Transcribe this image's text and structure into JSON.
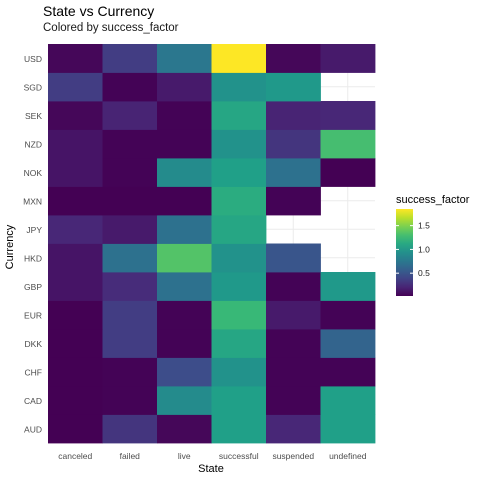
{
  "chart_data": {
    "type": "heatmap",
    "title": "State vs Currency",
    "subtitle": "Colored by success_factor",
    "xlabel": "State",
    "ylabel": "Currency",
    "x": [
      "canceled",
      "failed",
      "live",
      "successful",
      "suspended",
      "undefined"
    ],
    "y": [
      "AUD",
      "CAD",
      "CHF",
      "DKK",
      "EUR",
      "GBP",
      "HKD",
      "JPY",
      "MXN",
      "NOK",
      "NZD",
      "SEK",
      "SGD",
      "USD"
    ],
    "values": [
      [
        0.02,
        0.3,
        0.05,
        1.05,
        0.22,
        1.05
      ],
      [
        0.02,
        0.03,
        0.9,
        1.05,
        0.03,
        1.05
      ],
      [
        0.02,
        0.03,
        0.45,
        0.95,
        0.03,
        0.03
      ],
      [
        0.02,
        0.35,
        0.03,
        1.1,
        0.03,
        0.6
      ],
      [
        0.02,
        0.35,
        0.03,
        1.25,
        0.15,
        0.03
      ],
      [
        0.12,
        0.25,
        0.7,
        1.0,
        0.03,
        1.0
      ],
      [
        0.12,
        0.7,
        1.35,
        0.95,
        0.5,
        null
      ],
      [
        0.22,
        0.15,
        0.7,
        1.1,
        null,
        null
      ],
      [
        0.02,
        0.02,
        0.02,
        1.15,
        0.03,
        null
      ],
      [
        0.12,
        0.03,
        0.9,
        1.05,
        0.7,
        0.02
      ],
      [
        0.12,
        0.03,
        0.03,
        0.95,
        0.3,
        1.3
      ],
      [
        0.05,
        0.2,
        0.03,
        1.1,
        0.2,
        0.22
      ],
      [
        0.35,
        0.03,
        0.15,
        0.95,
        1.0,
        null
      ],
      [
        0.05,
        0.35,
        0.75,
        1.85,
        0.05,
        0.15
      ]
    ],
    "legend": {
      "title": "success_factor",
      "ticks": [
        0.5,
        1.0,
        1.5
      ],
      "tick_labels": [
        "0.5",
        "1.0",
        "1.5"
      ],
      "range": [
        0.02,
        1.85
      ],
      "placement": "right"
    },
    "colormap": "viridis",
    "grid": true
  }
}
